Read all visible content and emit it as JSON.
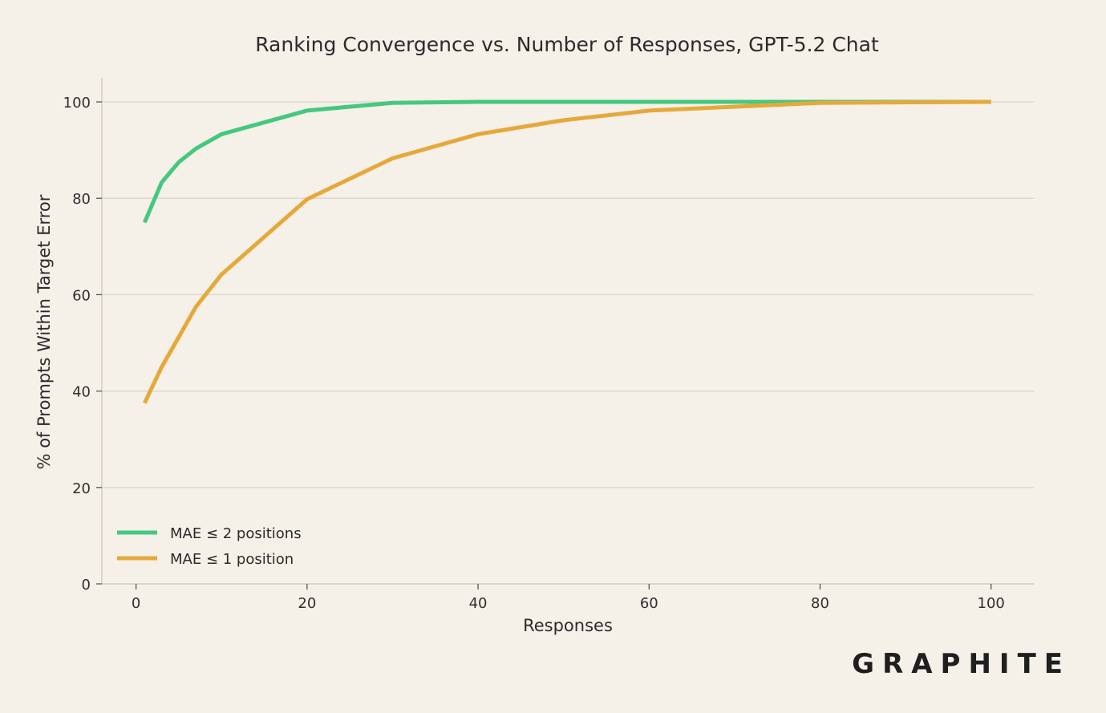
{
  "brand": {
    "logo_text": "GRAPHITE"
  },
  "chart_data": {
    "type": "line",
    "title": "Ranking Convergence vs. Number of Responses, GPT-5.2 Chat",
    "xlabel": "Responses",
    "ylabel": "% of Prompts Within Target Error",
    "xlim": [
      -4,
      105
    ],
    "ylim": [
      0,
      105
    ],
    "xticks": [
      0,
      20,
      40,
      60,
      80,
      100
    ],
    "yticks": [
      0,
      20,
      40,
      60,
      80,
      100
    ],
    "grid": "horizontal",
    "legend_position": "lower-left",
    "series": [
      {
        "name": "MAE ≤ 2 positions",
        "color": "#44c87f",
        "x": [
          1,
          3,
          5,
          7,
          10,
          20,
          30,
          40,
          50,
          60,
          80,
          100
        ],
        "y": [
          75,
          83.3,
          87.5,
          90.3,
          93.3,
          98.2,
          99.8,
          100,
          100,
          100,
          100,
          100
        ]
      },
      {
        "name": "MAE ≤ 1 position",
        "color": "#e5a93b",
        "x": [
          1,
          3,
          5,
          7,
          10,
          20,
          30,
          40,
          50,
          60,
          80,
          100
        ],
        "y": [
          37.5,
          45,
          51.2,
          57.5,
          64.2,
          79.8,
          88.3,
          93.3,
          96.2,
          98.2,
          99.8,
          100
        ]
      }
    ]
  }
}
